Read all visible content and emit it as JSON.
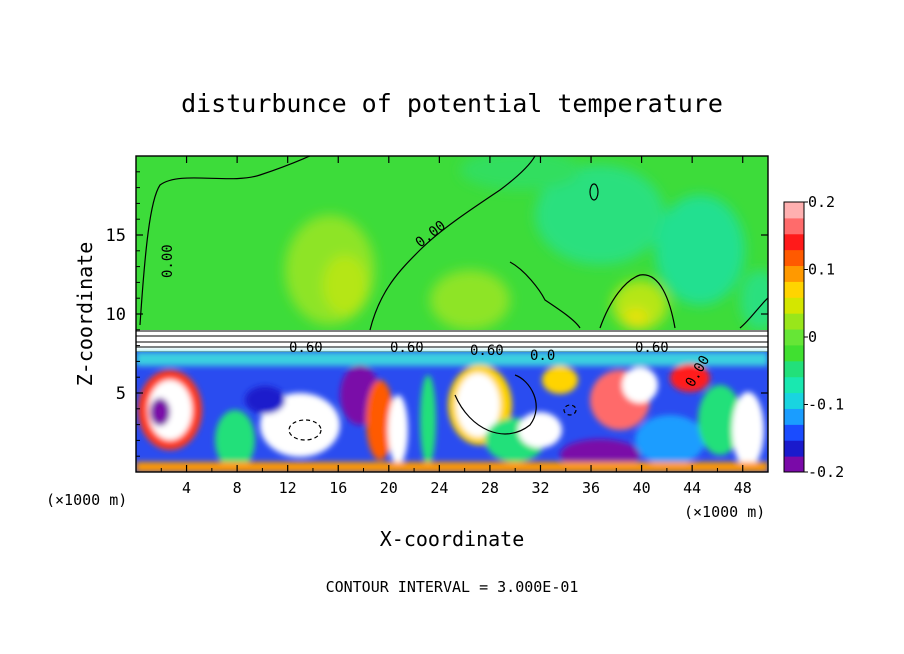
{
  "chart_data": {
    "type": "heatmap",
    "title": "disturbunce of potential temperature",
    "xlabel": "X-coordinate",
    "ylabel": "Z-coordinate",
    "x_unit": "(×1000 m)",
    "xlim": [
      0,
      50
    ],
    "ylim": [
      0,
      20
    ],
    "x_ticks": [
      "4",
      "8",
      "12",
      "16",
      "20",
      "24",
      "28",
      "32",
      "36",
      "40",
      "44",
      "48"
    ],
    "y_ticks": [
      "5",
      "10",
      "15"
    ],
    "colorbar": {
      "range": [
        -0.2,
        0.2
      ],
      "tick_labels": [
        "0.2",
        "0.1",
        "0",
        "-0.1",
        "-0.2"
      ],
      "colors": [
        "#7a0aa8",
        "#1a1acc",
        "#1a4cff",
        "#1a9dff",
        "#19d4e0",
        "#19e8b0",
        "#22e07a",
        "#40e030",
        "#66e636",
        "#99e61a",
        "#d4e600",
        "#ffd400",
        "#ff9900",
        "#ff5a00",
        "#ff1a1a",
        "#ff6b6b",
        "#ffb0b0"
      ]
    },
    "contour_labels": [
      "0.00",
      "0.00",
      "0.60",
      "0.60",
      "0.60",
      "0.0",
      "0.60",
      "0.00"
    ],
    "contour_interval": "CONTOUR INTERVAL = 3.000E-01"
  }
}
